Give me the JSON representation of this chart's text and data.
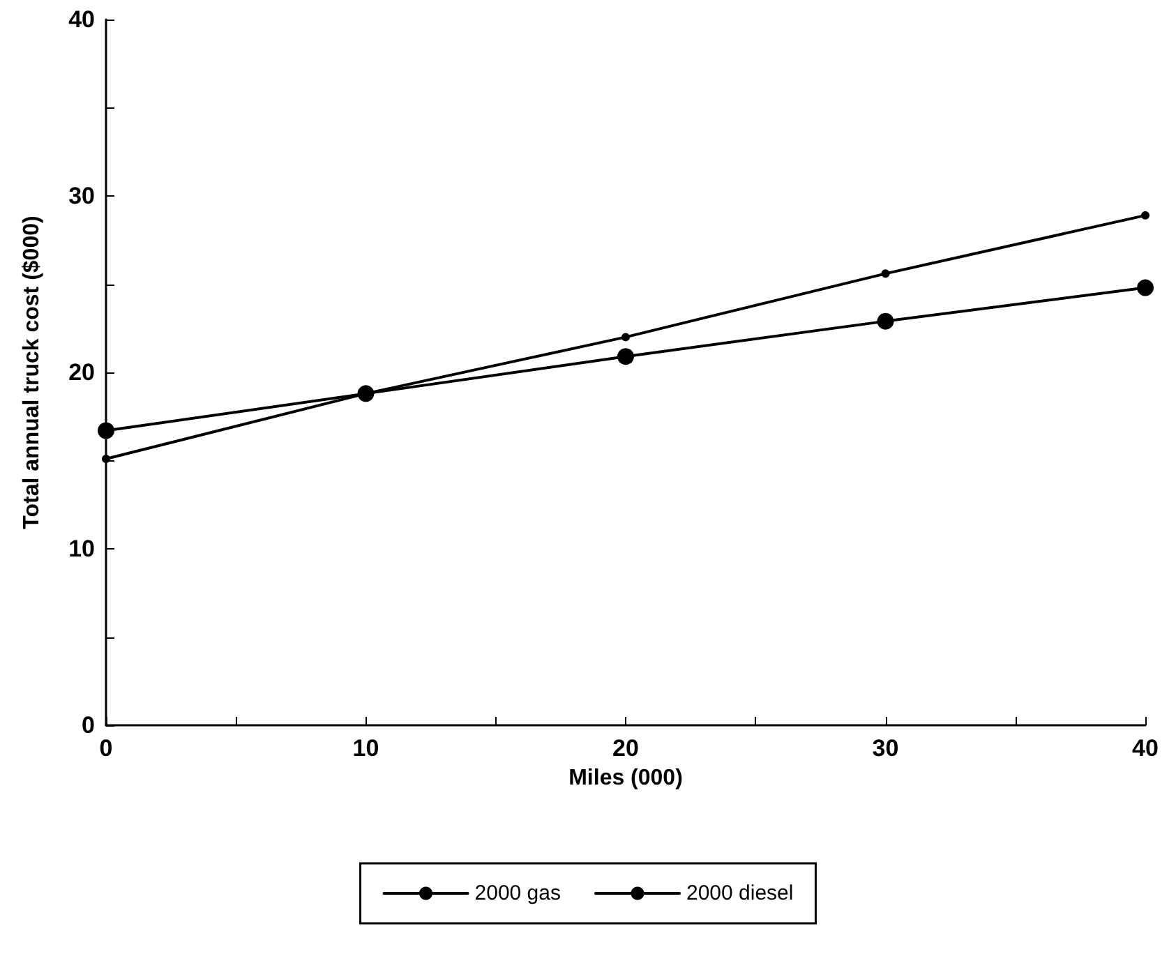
{
  "chart_data": {
    "type": "line",
    "xlabel": "Miles (000)",
    "ylabel": "Total annual truck cost ($000)",
    "x": [
      0,
      10,
      20,
      30,
      40
    ],
    "series": [
      {
        "name": "2000 gas",
        "color": "#000000",
        "values": [
          15.1,
          18.8,
          22.0,
          25.6,
          28.9
        ]
      },
      {
        "name": "2000 diesel",
        "color": "#000000",
        "values": [
          16.7,
          18.8,
          20.9,
          22.9,
          24.8
        ]
      }
    ],
    "xlim": [
      0,
      40
    ],
    "ylim": [
      0,
      40
    ],
    "xticks": [
      0,
      {
        "value": 5,
        "label": null
      },
      10,
      {
        "value": 15,
        "label": null
      },
      20,
      {
        "value": 25,
        "label": null
      },
      30,
      {
        "value": 35,
        "label": null
      },
      40
    ],
    "yticks": [
      0,
      {
        "value": 5,
        "label": null
      },
      10,
      {
        "value": 15,
        "label": null
      },
      20,
      {
        "value": 25,
        "label": null
      },
      30,
      {
        "value": 35,
        "label": null
      },
      40
    ],
    "grid": false,
    "legend": "bottom",
    "marker": "circle",
    "line_style": "solid"
  }
}
